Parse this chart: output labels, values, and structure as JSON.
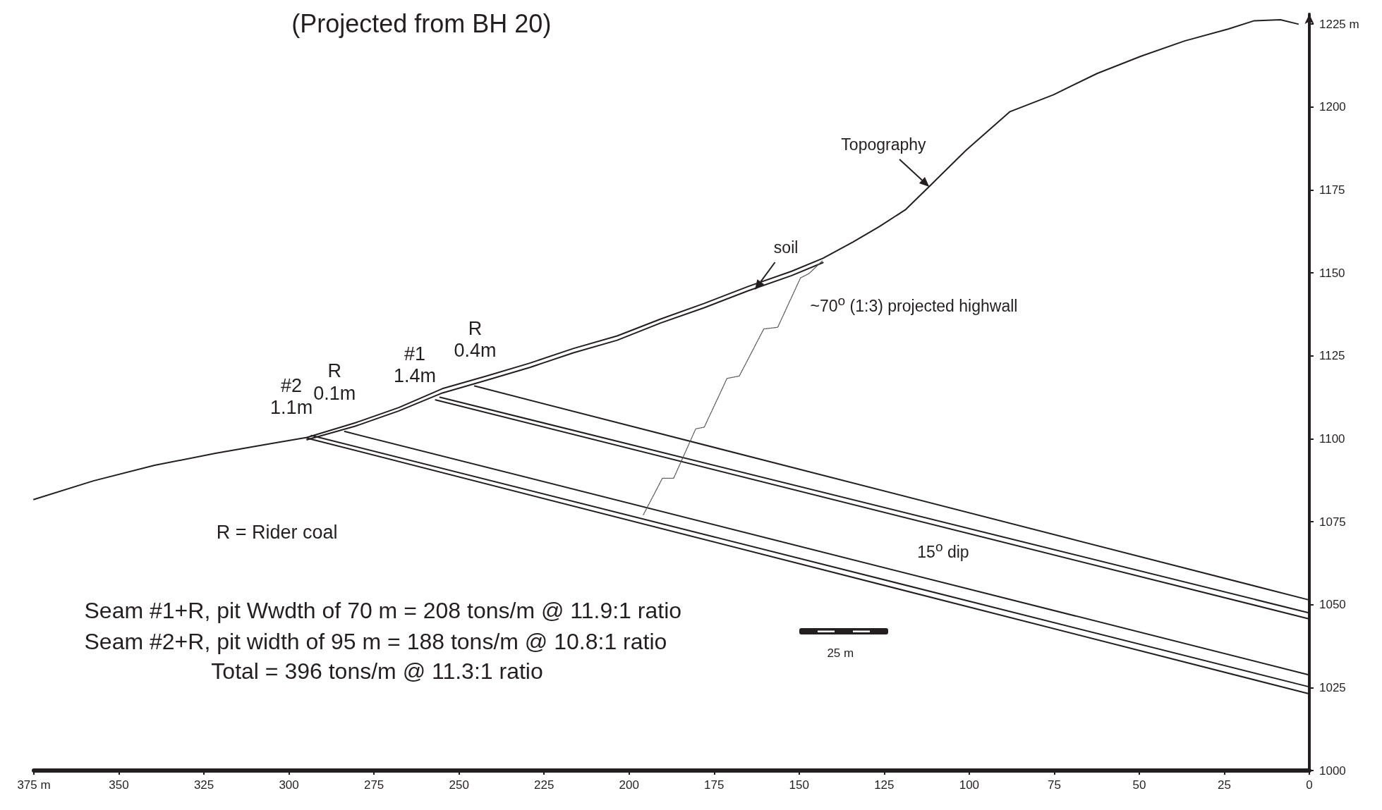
{
  "chart_data": {
    "type": "line",
    "title": "(Projected from BH 20)",
    "xlim": [
      375,
      0
    ],
    "xticks": [
      {
        "value": 375,
        "label": "375 m"
      },
      350,
      325,
      300,
      275,
      250,
      225,
      200,
      175,
      150,
      125,
      100,
      75,
      50,
      25,
      0
    ],
    "ylim": [
      1000,
      1228
    ],
    "yticks": [
      1000,
      1025,
      1050,
      1075,
      1100,
      1125,
      1150,
      1175,
      1200,
      {
        "value": 1225,
        "label": "1225 m"
      }
    ],
    "grid": false,
    "marker": "none",
    "series": [
      {
        "color": "#231f20",
        "line_style": "solid",
        "x": [
          375,
          357.5,
          339.5,
          321.6,
          306.2,
          294.7,
          280.5,
          267.7,
          254.9,
          242,
          229.2,
          216.4,
          203.5,
          190.7,
          177.9,
          165,
          152.2,
          143,
          134.2,
          126.5,
          118.8,
          111.1,
          100.9,
          88,
          75.2,
          62.4,
          49.5,
          36.7,
          23.9,
          16.2,
          8.5,
          3.3
        ],
        "values": [
          1081.7,
          1087.3,
          1092,
          1095.6,
          1098.4,
          1100.4,
          1104.8,
          1109.4,
          1115.1,
          1118.9,
          1122.8,
          1127.2,
          1131,
          1136.1,
          1140.8,
          1145.9,
          1150.5,
          1154.4,
          1159.3,
          1163.9,
          1169,
          1176.7,
          1187,
          1198.6,
          1203.7,
          1210.1,
          1215.3,
          1219.9,
          1223.5,
          1226,
          1226.3,
          1225
        ]
      },
      {
        "color": "#231f20",
        "line_style": "solid",
        "x": [
          294.7,
          280.5,
          267.7,
          254.9,
          242,
          229.2,
          216.4,
          203.5,
          190.7,
          177.9,
          165,
          152.2,
          143
        ],
        "values": [
          1099.7,
          1103.8,
          1108.4,
          1113.8,
          1117.6,
          1121.5,
          1125.9,
          1129.7,
          1134.9,
          1139.5,
          1144.6,
          1149.2,
          1153.1
        ]
      },
      {
        "color": "#231f20",
        "line_style": "solid",
        "x": [
          245.4,
          0
        ],
        "values": [
          1115.9,
          1051.4
        ]
      },
      {
        "color": "#231f20",
        "line_style": "solid",
        "x": [
          255.6,
          0
        ],
        "values": [
          1112.5,
          1047.5
        ]
      },
      {
        "color": "#231f20",
        "line_style": "solid",
        "x": [
          256.9,
          0
        ],
        "values": [
          1111.7,
          1045.7
        ]
      },
      {
        "color": "#231f20",
        "line_style": "solid",
        "x": [
          283.6,
          0
        ],
        "values": [
          1102.2,
          1028.8
        ]
      },
      {
        "color": "#231f20",
        "line_style": "solid",
        "x": [
          293.4,
          0
        ],
        "values": [
          1101,
          1025.2
        ]
      },
      {
        "color": "#231f20",
        "line_style": "solid",
        "x": [
          294.7,
          0
        ],
        "values": [
          1100.2,
          1023.1
        ]
      },
      {
        "color": "#555555",
        "line_style": "dotted",
        "x": [
          195.8,
          190.2,
          186.9,
          180.4,
          177.9,
          171.2,
          167.6,
          160.4,
          156.3,
          149.6,
          147.1,
          143.2
        ],
        "values": [
          1077.1,
          1088.1,
          1088.1,
          1103,
          1103.5,
          1118.2,
          1118.9,
          1133.1,
          1133.6,
          1148.5,
          1149.8,
          1153.6
        ]
      }
    ],
    "annotations": [
      {
        "text": "Topography",
        "x": 111.7,
        "y": 1176
      },
      {
        "text": "soil",
        "x": 163,
        "y": 1145
      },
      "~70$^{o}$ (1:3) projected highwall",
      "#2\n1.1m",
      "R\n0.1m",
      "#1\n1.4m",
      "R\n0.4m",
      "15$^{o}$ dip",
      "R = Rider coal",
      "Seam #1+R, pit Wwdth of 70 m = 208 tons/m @ 11.9:1 ratio",
      "Seam #2+R, pit width of 95 m = 188 tons/m @ 10.8:1 ratio",
      "Total = 396 tons/m @ 11.3:1 ratio",
      "25 m"
    ]
  }
}
